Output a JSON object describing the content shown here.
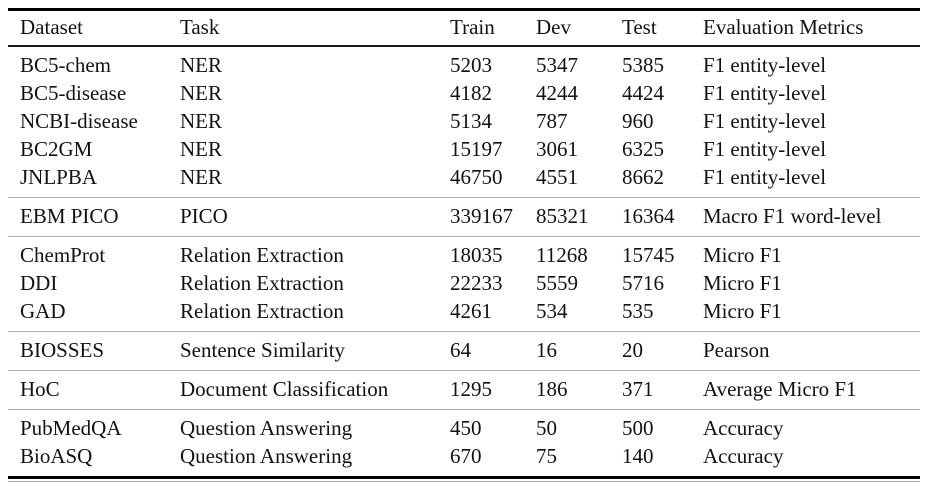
{
  "table": {
    "columns": [
      "Dataset",
      "Task",
      "Train",
      "Dev",
      "Test",
      "Evaluation Metrics"
    ],
    "groups": [
      {
        "rows": [
          [
            "BC5-chem",
            "NER",
            "5203",
            "5347",
            "5385",
            "F1 entity-level"
          ],
          [
            "BC5-disease",
            "NER",
            "4182",
            "4244",
            "4424",
            "F1 entity-level"
          ],
          [
            "NCBI-disease",
            "NER",
            "5134",
            "787",
            "960",
            "F1 entity-level"
          ],
          [
            "BC2GM",
            "NER",
            "15197",
            "3061",
            "6325",
            "F1 entity-level"
          ],
          [
            "JNLPBA",
            "NER",
            "46750",
            "4551",
            "8662",
            "F1 entity-level"
          ]
        ]
      },
      {
        "rows": [
          [
            "EBM PICO",
            "PICO",
            "339167",
            "85321",
            "16364",
            "Macro F1 word-level"
          ]
        ]
      },
      {
        "rows": [
          [
            "ChemProt",
            "Relation Extraction",
            "18035",
            "11268",
            "15745",
            "Micro F1"
          ],
          [
            "DDI",
            "Relation Extraction",
            "22233",
            "5559",
            "5716",
            "Micro F1"
          ],
          [
            "GAD",
            "Relation Extraction",
            "4261",
            "534",
            "535",
            "Micro F1"
          ]
        ]
      },
      {
        "rows": [
          [
            "BIOSSES",
            "Sentence Similarity",
            "64",
            "16",
            "20",
            "Pearson"
          ]
        ]
      },
      {
        "rows": [
          [
            "HoC",
            "Document Classification",
            "1295",
            "186",
            "371",
            "Average Micro F1"
          ]
        ]
      },
      {
        "rows": [
          [
            "PubMedQA",
            "Question Answering",
            "450",
            "50",
            "500",
            "Accuracy"
          ],
          [
            "BioASQ",
            "Question Answering",
            "670",
            "75",
            "140",
            "Accuracy"
          ]
        ]
      }
    ],
    "colors": {
      "text": "#121212",
      "background": "#ffffff",
      "rule_heavy": "#000000",
      "rule_header": "#1a1a1a",
      "rule_section": "#b3b3b3",
      "rule_shadow": "#a6a6a6"
    }
  }
}
